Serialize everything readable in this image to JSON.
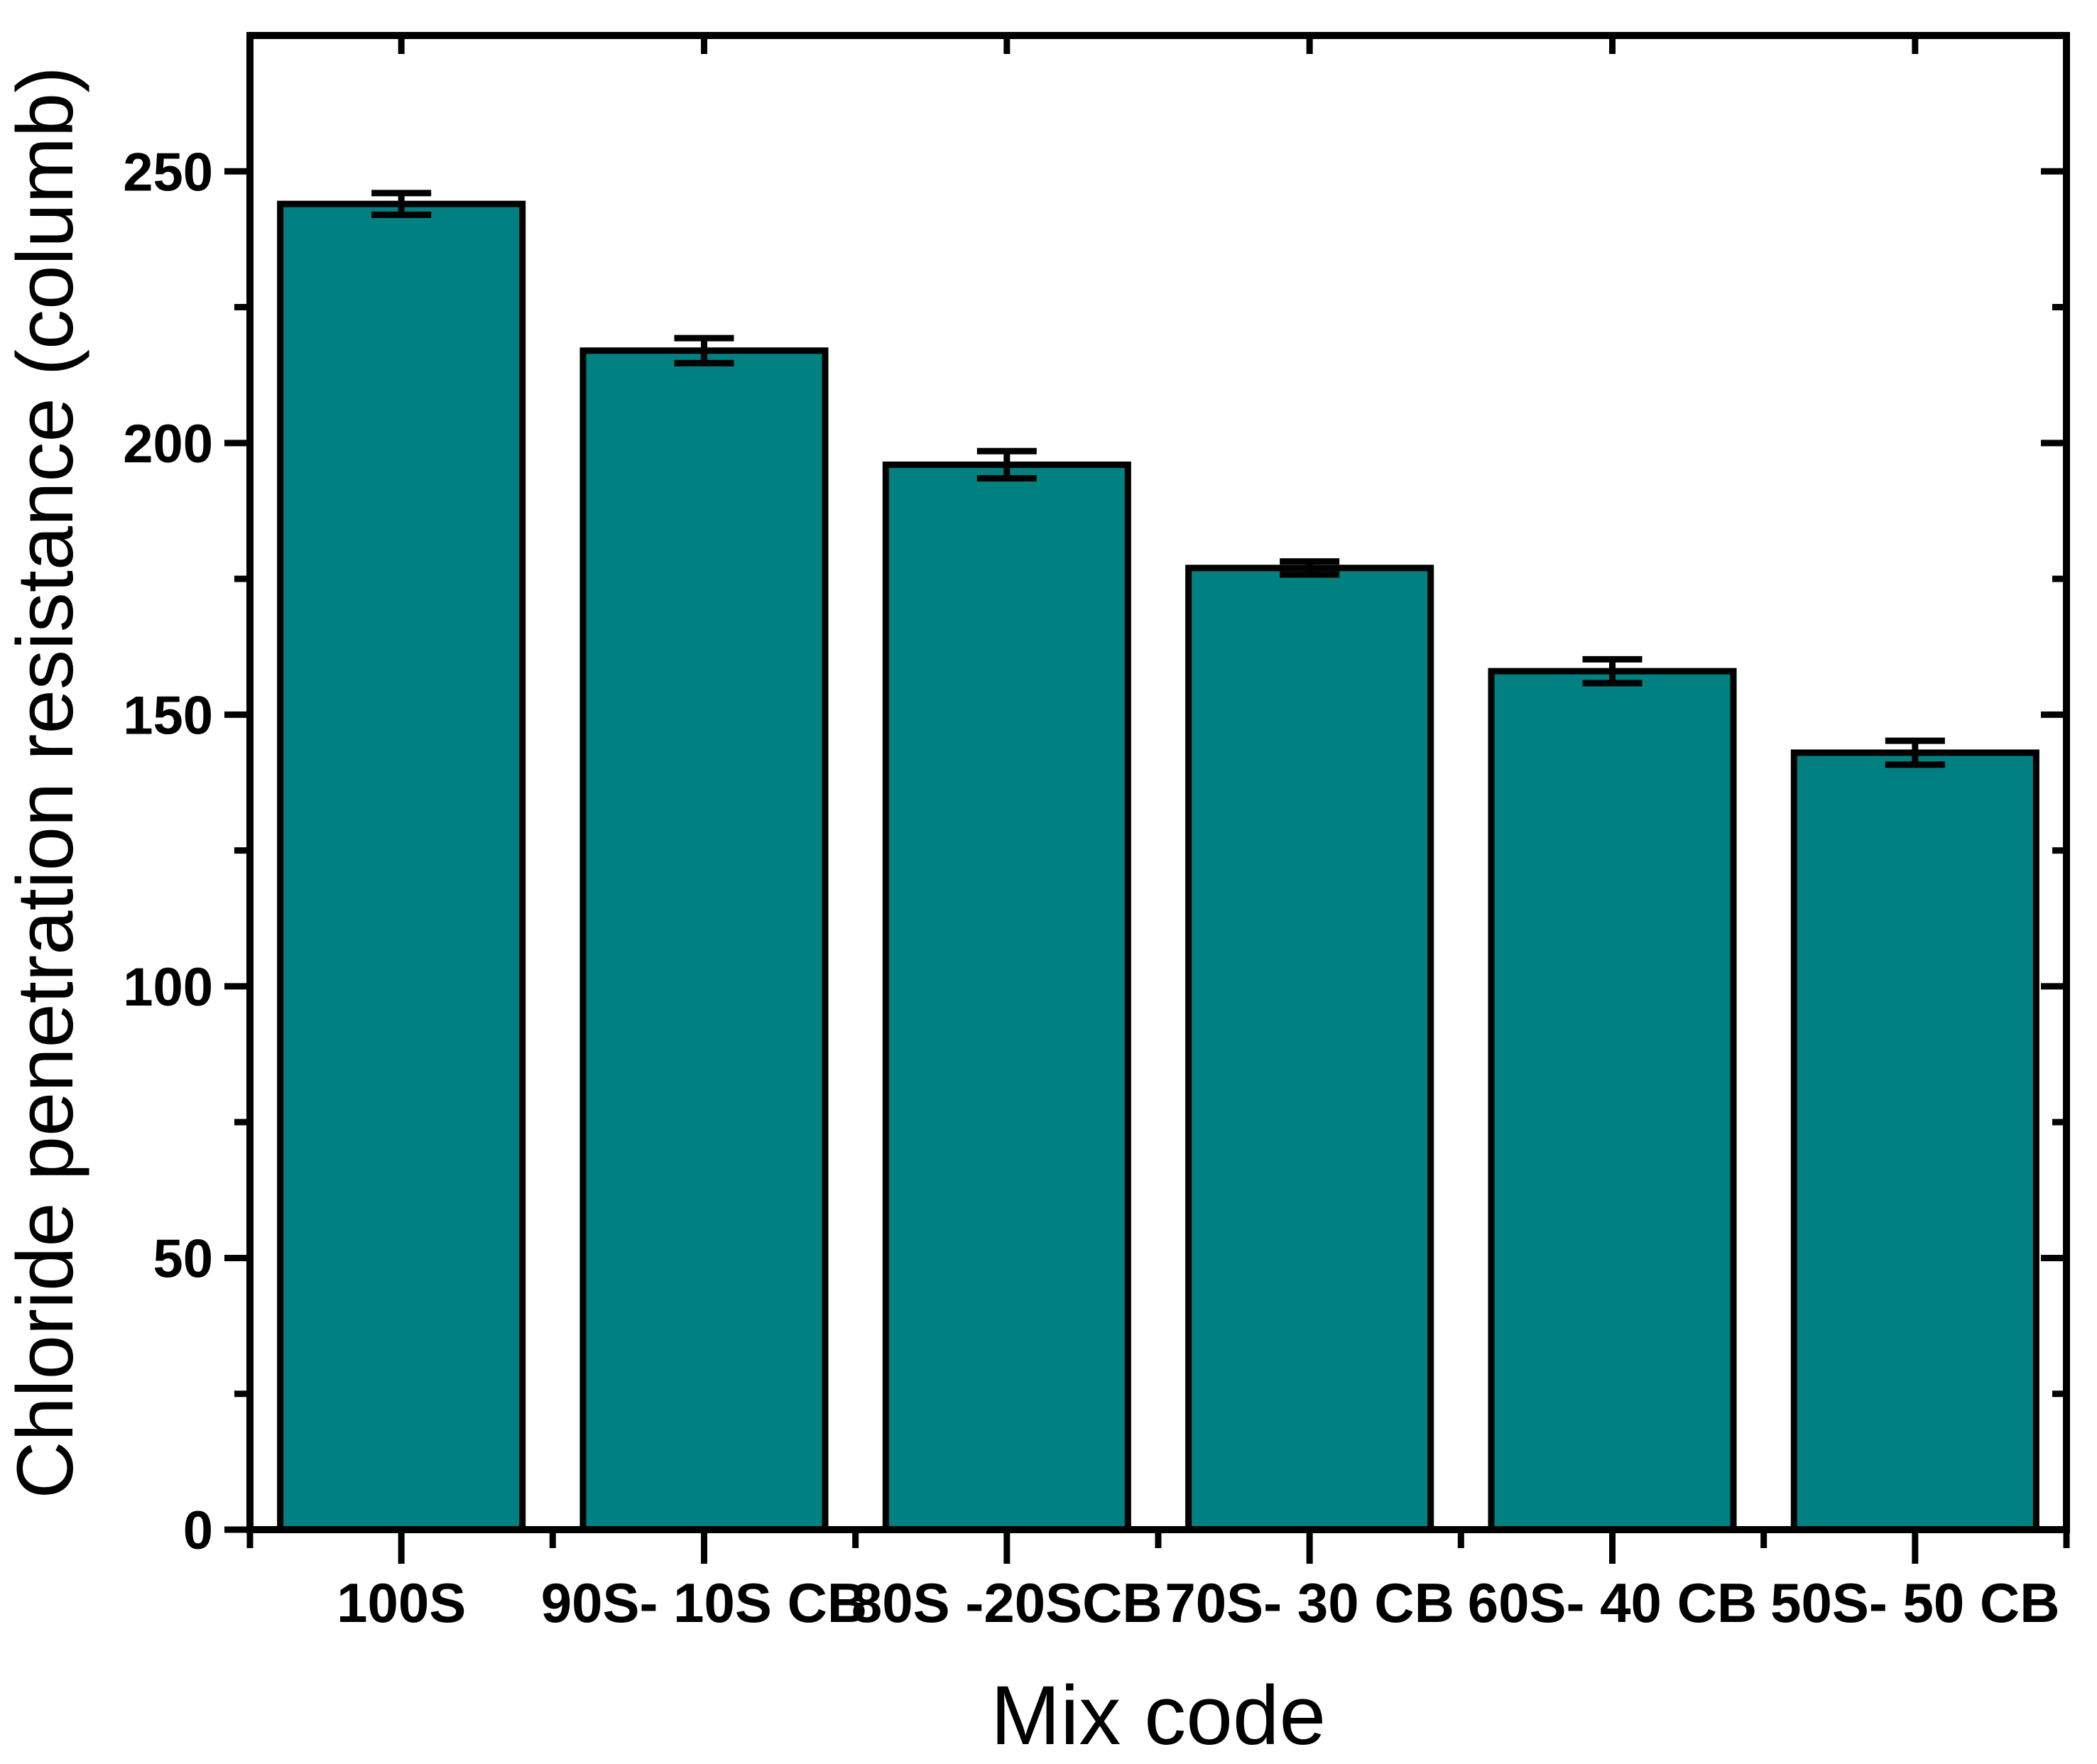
{
  "chart_data": {
    "type": "bar",
    "title": "",
    "xlabel": "Mix code",
    "ylabel": "Chloride penetration resistance (columb)",
    "categories": [
      "100S",
      "90S- 10S CB",
      "80S -20SCB",
      "70S- 30 CB",
      "60S- 40 CB",
      "50S- 50 CB"
    ],
    "values": [
      244,
      217,
      196,
      177,
      158,
      143
    ],
    "error_bars": [
      2.0,
      2.3,
      2.5,
      1.2,
      2.2,
      2.2
    ],
    "ylim": [
      0,
      275
    ],
    "yticks": [
      0,
      50,
      100,
      150,
      200,
      250
    ],
    "ytick_minor_interval": 25,
    "bar_color": "#008080",
    "bar_edge_color": "#000000",
    "axis_color": "#000000",
    "background_color": "#ffffff",
    "grid": false,
    "legend": null,
    "bar_width_fraction": 0.8
  }
}
